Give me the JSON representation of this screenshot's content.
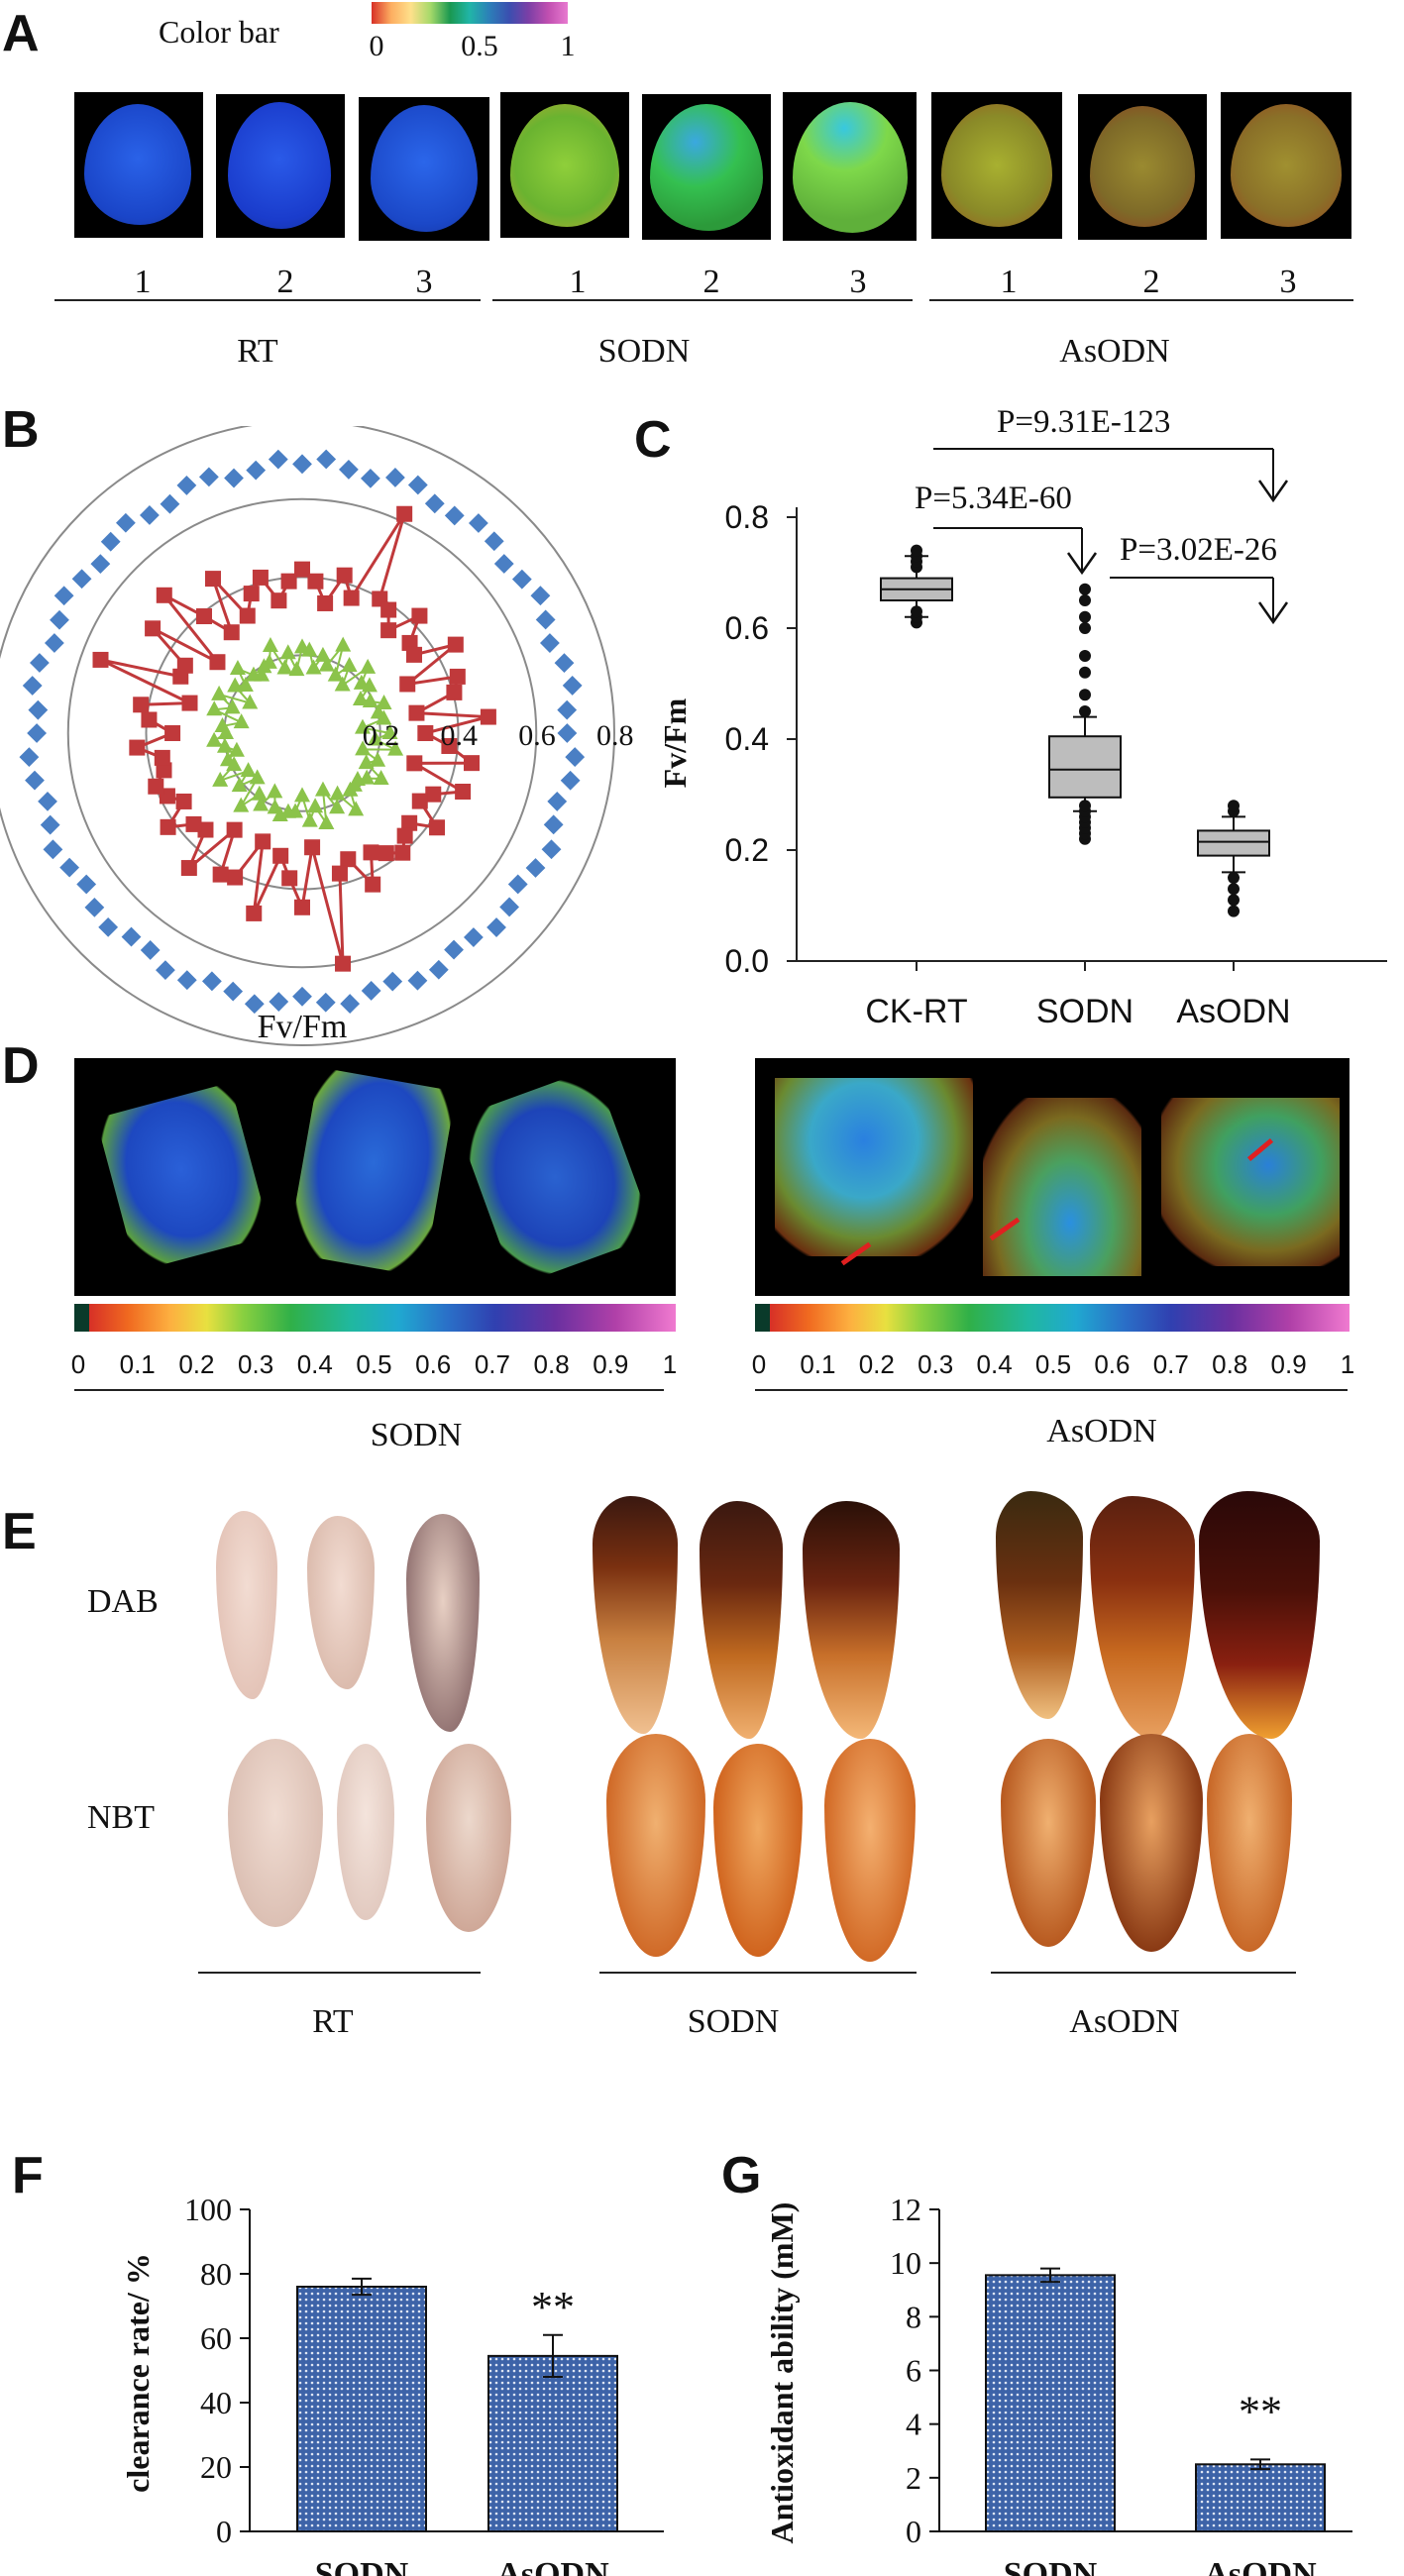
{
  "panels": {
    "a": "A",
    "b": "B",
    "c": "C",
    "d": "D",
    "e": "E",
    "f": "F",
    "g": "G"
  },
  "panelA": {
    "colorbar_title": "Color bar",
    "colorbar_ticks": [
      "0",
      "0.5",
      "1"
    ],
    "tile_numbers": [
      "1",
      "2",
      "3",
      "1",
      "2",
      "3",
      "1",
      "2",
      "3"
    ],
    "groups": [
      "RT",
      "SODN",
      "AsODN"
    ]
  },
  "panelB": {
    "ring_labels": [
      "0.2",
      "0.4",
      "0.6",
      "0.8"
    ],
    "axis_title": "Fv/Fm"
  },
  "panelC": {
    "ylabel": "Fv/Fm",
    "yticks": [
      "0.8",
      "0.6",
      "0.4",
      "0.2",
      "0.0"
    ],
    "categories": [
      "CK-RT",
      "SODN",
      "AsODN"
    ],
    "pvalues": [
      "P=9.31E-123",
      "P=5.34E-60",
      "P=3.02E-26"
    ]
  },
  "panelD": {
    "ticks": [
      "0",
      "0.1",
      "0.2",
      "0.3",
      "0.4",
      "0.5",
      "0.6",
      "0.7",
      "0.8",
      "0.9",
      "1"
    ],
    "groups": [
      "SODN",
      "AsODN"
    ]
  },
  "panelE": {
    "rows": [
      "DAB",
      "NBT"
    ],
    "groups": [
      "RT",
      "SODN",
      "AsODN"
    ]
  },
  "colors": {
    "rt_leaf": "#1a4fd8",
    "marker_blue": "#4a7fc4",
    "marker_red": "#c0393b",
    "marker_green": "#8bc34a",
    "bar_fill": "#3d63a8"
  },
  "chart_data": [
    {
      "id": "C",
      "type": "box",
      "categories": [
        "CK-RT",
        "SODN",
        "AsODN"
      ],
      "ylabel": "Fv/Fm",
      "ylim": [
        0,
        0.8
      ],
      "boxes": [
        {
          "q1": 0.65,
          "median": 0.67,
          "q3": 0.69,
          "whisker_low": 0.62,
          "whisker_high": 0.73
        },
        {
          "q1": 0.295,
          "median": 0.345,
          "q3": 0.405,
          "whisker_low": 0.27,
          "whisker_high": 0.44
        },
        {
          "q1": 0.19,
          "median": 0.215,
          "q3": 0.235,
          "whisker_low": 0.16,
          "whisker_high": 0.26
        }
      ],
      "outliers": [
        [
          0.61,
          0.62,
          0.63,
          0.71,
          0.72,
          0.73,
          0.74
        ],
        [
          0.22,
          0.23,
          0.24,
          0.25,
          0.26,
          0.27,
          0.28,
          0.45,
          0.48,
          0.52,
          0.55,
          0.6,
          0.62,
          0.65,
          0.67
        ],
        [
          0.09,
          0.11,
          0.13,
          0.15,
          0.27,
          0.28
        ]
      ],
      "pvalues": [
        "P=9.31E-123",
        "P=5.34E-60",
        "P=3.02E-26"
      ]
    },
    {
      "id": "F",
      "type": "bar",
      "categories": [
        "SODN",
        "AsODN"
      ],
      "values": [
        76,
        54.5
      ],
      "errors": [
        2.5,
        6.5
      ],
      "ylabel": "clearance rate/ %",
      "ylim": [
        0,
        100
      ],
      "annotations": [
        "**"
      ]
    },
    {
      "id": "G",
      "type": "bar",
      "categories": [
        "SODN",
        "AsODN"
      ],
      "values": [
        9.55,
        2.5
      ],
      "errors": [
        0.25,
        0.18
      ],
      "ylabel": "Antioxidant ability (mM)",
      "ylim": [
        0,
        12
      ],
      "annotations": [
        "**"
      ]
    }
  ]
}
